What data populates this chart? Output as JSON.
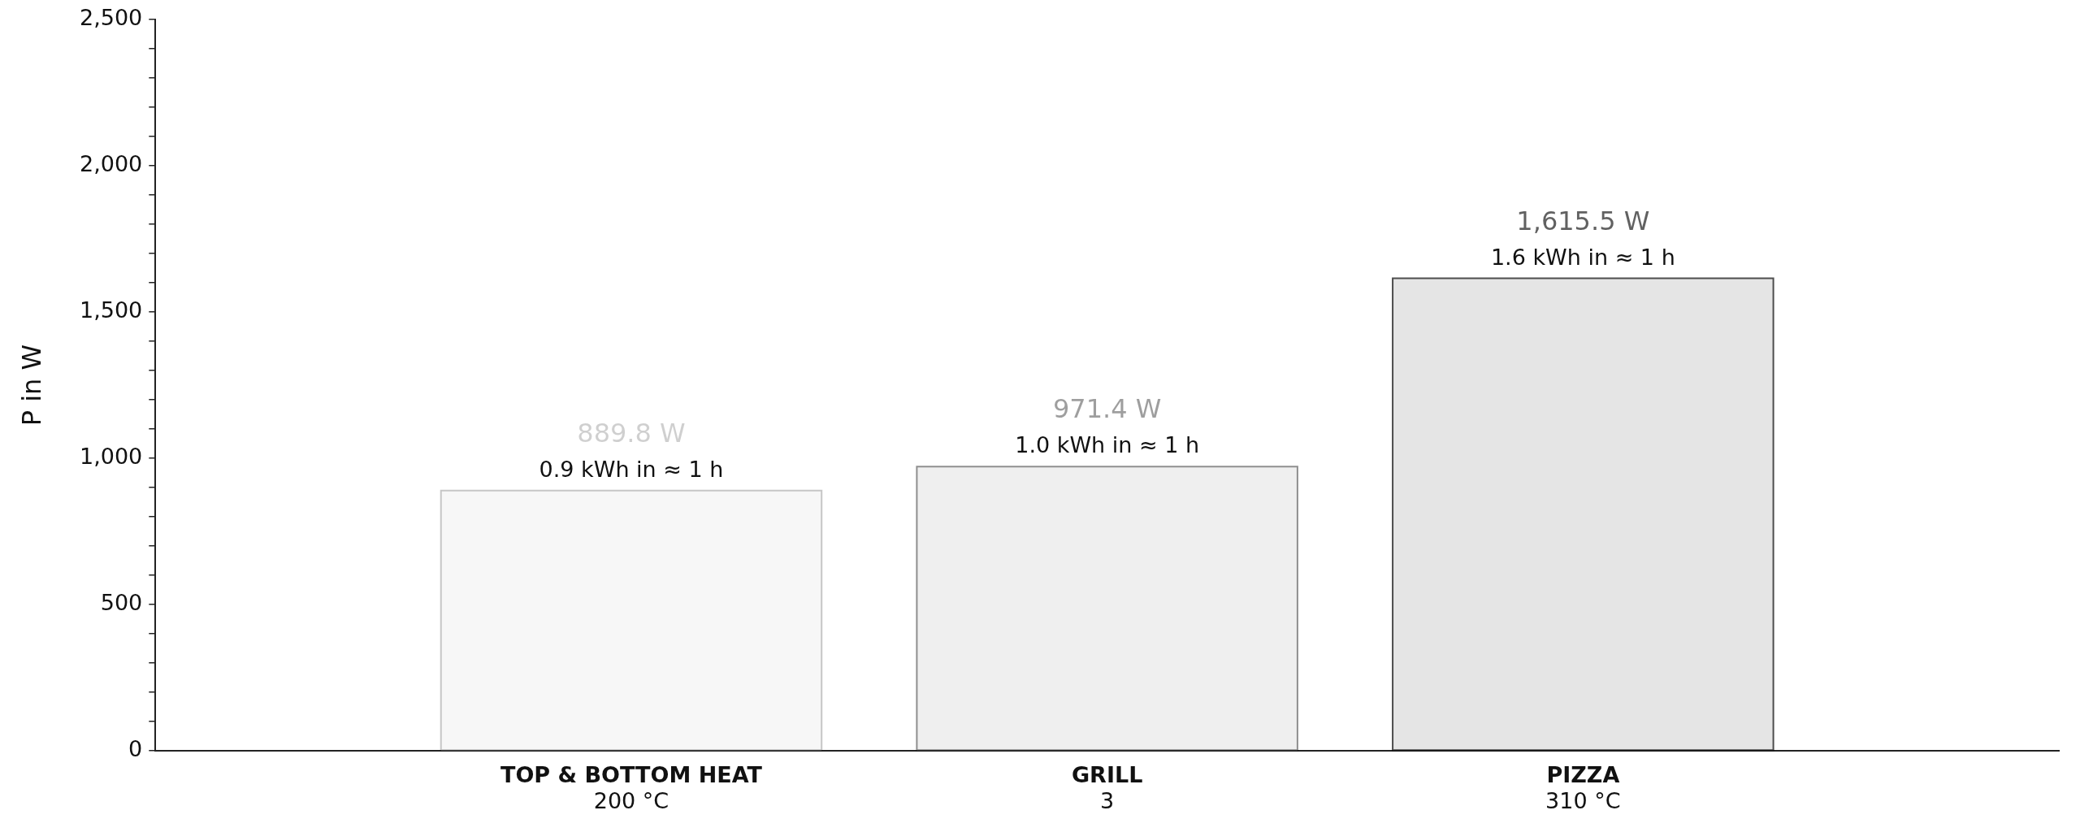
{
  "chart_data": {
    "type": "bar",
    "ylabel": "P in W",
    "categories": [
      "TOP & BOTTOM HEAT\n200 °C",
      "GRILL\n3",
      "PIZZA\n310 °C"
    ],
    "values": [
      889.8,
      971.4,
      1615.5
    ],
    "colors": [
      "#f7f7f7",
      "#efefef",
      "#e5e5e5"
    ],
    "value_labels": [
      "889.8 W",
      "971.4 W",
      "1,615.5 W"
    ],
    "annotations": [
      {
        "text": "0.9 kWh in ≈ 1 h",
        "x": "TOP & BOTTOM HEAT\n200 °C",
        "y": 889.8
      },
      {
        "text": "1.0 kWh in ≈ 1 h",
        "x": "GRILL\n3",
        "y": 971.4
      },
      {
        "text": "1.6 kWh in ≈ 1 h",
        "x": "PIZZA\n310 °C",
        "y": 1615.5
      }
    ],
    "ylim": [
      0,
      2500
    ],
    "yticks": [
      0,
      {
        "value": 100,
        "label": null
      },
      {
        "value": 200,
        "label": null
      },
      {
        "value": 300,
        "label": null
      },
      {
        "value": 400,
        "label": null
      },
      500,
      {
        "value": 600,
        "label": null
      },
      {
        "value": 700,
        "label": null
      },
      {
        "value": 800,
        "label": null
      },
      {
        "value": 900,
        "label": null
      },
      {
        "value": 1000,
        "label": "1,000"
      },
      {
        "value": 1100,
        "label": null
      },
      {
        "value": 1200,
        "label": null
      },
      {
        "value": 1300,
        "label": null
      },
      {
        "value": 1400,
        "label": null
      },
      {
        "value": 1500,
        "label": "1,500"
      },
      {
        "value": 1600,
        "label": null
      },
      {
        "value": 1700,
        "label": null
      },
      {
        "value": 1800,
        "label": null
      },
      {
        "value": 1900,
        "label": null
      },
      {
        "value": 2000,
        "label": "2,000"
      },
      {
        "value": 2100,
        "label": null
      },
      {
        "value": 2200,
        "label": null
      },
      {
        "value": 2300,
        "label": null
      },
      {
        "value": 2400,
        "label": null
      },
      {
        "value": 2500,
        "label": "2,500"
      }
    ],
    "grid": false,
    "legend": false
  }
}
